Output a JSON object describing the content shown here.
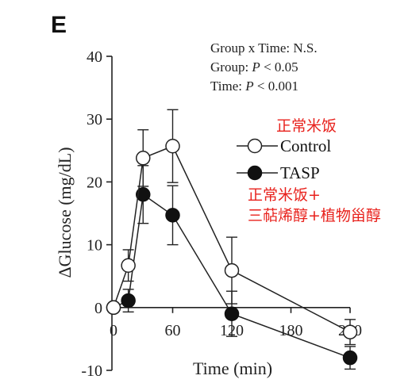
{
  "panel_letter": "E",
  "colors": {
    "axis": "#222222",
    "line": "#222222",
    "control_fill": "#ffffff",
    "tasp_fill": "#111111",
    "annotation_red": "#e8211c"
  },
  "annotations": {
    "stat_lines": [
      {
        "pre": "Group x Time: N.S.",
        "italic": "",
        "post": ""
      },
      {
        "pre": "Group: ",
        "italic": "P",
        "post": " < 0.05"
      },
      {
        "pre": "Time: ",
        "italic": "P",
        "post": " < 0.001"
      }
    ],
    "control_cn": "正常米饭",
    "tasp_cn_line1": "正常米饭+",
    "tasp_cn_line2": "三萜烯醇+植物甾醇"
  },
  "chart_data": {
    "type": "line",
    "title": "",
    "xlabel": "Time (min)",
    "ylabel": "ΔGlucose (mg/dL)",
    "xlim": [
      0,
      240
    ],
    "ylim": [
      -10,
      40
    ],
    "x_ticks": [
      0,
      60,
      120,
      180,
      240
    ],
    "y_ticks": [
      -10,
      0,
      10,
      20,
      30,
      40
    ],
    "grid": false,
    "legend_position": "right",
    "x": [
      0,
      15,
      30,
      60,
      120,
      240
    ],
    "series": [
      {
        "name": "Control",
        "marker": "open-circle",
        "values": [
          0,
          6.7,
          23.8,
          25.7,
          5.9,
          -3.9
        ],
        "error": [
          0,
          2.5,
          4.5,
          5.8,
          5.3,
          2.0
        ]
      },
      {
        "name": "TASP",
        "marker": "filled-circle",
        "values": [
          0,
          1.1,
          18.0,
          14.7,
          -1.0,
          -8.0
        ],
        "error": [
          0,
          1.8,
          4.6,
          4.7,
          3.6,
          1.8
        ]
      }
    ]
  }
}
